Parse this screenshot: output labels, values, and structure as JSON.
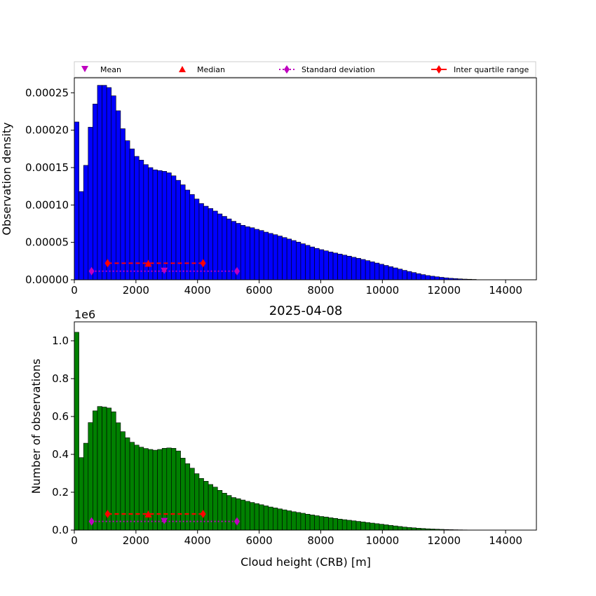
{
  "legend": {
    "mean": "Mean",
    "median": "Median",
    "std": "Standard deviation",
    "iqr": "Inter quartile range"
  },
  "colors": {
    "top_bars": "#0000ff",
    "bottom_bars": "#008000",
    "mean_marker": "#bf00bf",
    "median_marker": "#ff0000",
    "std": "#bf00bf",
    "iqr": "#ff0000"
  },
  "chart_data": [
    {
      "type": "bar",
      "title": "",
      "xlabel": "",
      "ylabel": "Observation density",
      "xlim": [
        0,
        15000
      ],
      "ylim": [
        0,
        0.00027
      ],
      "xticks": [
        "0",
        "2000",
        "4000",
        "6000",
        "8000",
        "10000",
        "12000",
        "14000"
      ],
      "yticks": [
        "0.00000",
        "0.00005",
        "0.00010",
        "0.00015",
        "0.00020",
        "0.00025"
      ],
      "bin_width": 150,
      "bin_start": 0,
      "values": [
        0.000211,
        0.000118,
        0.000153,
        0.000204,
        0.000235,
        0.00026,
        0.00026,
        0.000257,
        0.000246,
        0.000226,
        0.000202,
        0.000186,
        0.000175,
        0.000165,
        0.00016,
        0.000154,
        0.00015,
        0.000147,
        0.000146,
        0.000145,
        0.000143,
        0.000139,
        0.000133,
        0.000127,
        0.00012,
        0.000114,
        0.000108,
        0.000102,
        9.84e-05,
        9.53e-05,
        9.19e-05,
        8.81e-05,
        8.48e-05,
        8.14e-05,
        7.82e-05,
        7.55e-05,
        7.28e-05,
        7.09e-05,
        6.96e-05,
        6.75e-05,
        6.59e-05,
        6.37e-05,
        6.2e-05,
        6.03e-05,
        5.85e-05,
        5.65e-05,
        5.45e-05,
        5.25e-05,
        5.04e-05,
        4.82e-05,
        4.61e-05,
        4.39e-05,
        4.2e-05,
        4.03e-05,
        3.87e-05,
        3.72e-05,
        3.58e-05,
        3.44e-05,
        3.3e-05,
        3.16e-05,
        3.01e-05,
        2.87e-05,
        2.72e-05,
        2.56e-05,
        2.4e-05,
        2.24e-05,
        2.08e-05,
        1.92e-05,
        1.75e-05,
        1.59e-05,
        1.43e-05,
        1.26e-05,
        1.11e-05,
        9.7e-06,
        8.2e-06,
        6.9e-06,
        5.7e-06,
        4.8e-06,
        4e-06,
        3.3e-06,
        2.6e-06,
        2e-06,
        1.6e-06,
        1.2e-06,
        9e-07,
        7e-07,
        5e-07
      ],
      "markers": {
        "mean": {
          "x": 2920,
          "y": 1.15e-05
        },
        "median": {
          "x": 2400,
          "y": 2.22e-05
        },
        "std": {
          "x_low": 560,
          "x_high": 5280,
          "y": 1.15e-05
        },
        "iqr": {
          "x_low": 1080,
          "x_high": 4180,
          "y": 2.22e-05
        }
      },
      "legend_position": "top"
    },
    {
      "type": "bar",
      "title": "2025-04-08",
      "xlabel": "Cloud height (CRB) [m]",
      "ylabel": "Number of observations",
      "offset_label": "1e6",
      "xlim": [
        0,
        15000
      ],
      "ylim": [
        0,
        1100000
      ],
      "xticks": [
        "0",
        "2000",
        "4000",
        "6000",
        "8000",
        "10000",
        "12000",
        "14000"
      ],
      "yticks": [
        "0.0",
        "0.2",
        "0.4",
        "0.6",
        "0.8",
        "1.0"
      ],
      "bin_width": 150,
      "bin_start": 0,
      "values": [
        1045000,
        383000,
        459000,
        568000,
        630000,
        653000,
        650000,
        645000,
        625000,
        567000,
        520000,
        488000,
        464000,
        449000,
        438000,
        431000,
        426000,
        422000,
        426000,
        432000,
        434000,
        432000,
        418000,
        380000,
        351000,
        327000,
        298000,
        273000,
        258000,
        241000,
        227000,
        210000,
        195000,
        183000,
        172000,
        166000,
        159000,
        152000,
        146000,
        140000,
        134000,
        128000,
        122000,
        117000,
        112000,
        107000,
        102000,
        97000,
        93000,
        89000,
        84000,
        80000,
        76000,
        72000,
        69000,
        65000,
        62000,
        58000,
        55000,
        52000,
        49000,
        46000,
        43000,
        40000,
        37000,
        34000,
        31000,
        28000,
        25000,
        22000,
        19000,
        16000,
        14000,
        12000,
        10000,
        8500,
        7000,
        5800,
        4800,
        3900,
        3100,
        2400,
        1800,
        1400,
        1000,
        700,
        500
      ],
      "markers": {
        "mean": {
          "x": 2920,
          "y": 46000
        },
        "median": {
          "x": 2400,
          "y": 85000
        },
        "std": {
          "x_low": 560,
          "x_high": 5280,
          "y": 46000
        },
        "iqr": {
          "x_low": 1080,
          "x_high": 4180,
          "y": 85000
        }
      }
    }
  ]
}
